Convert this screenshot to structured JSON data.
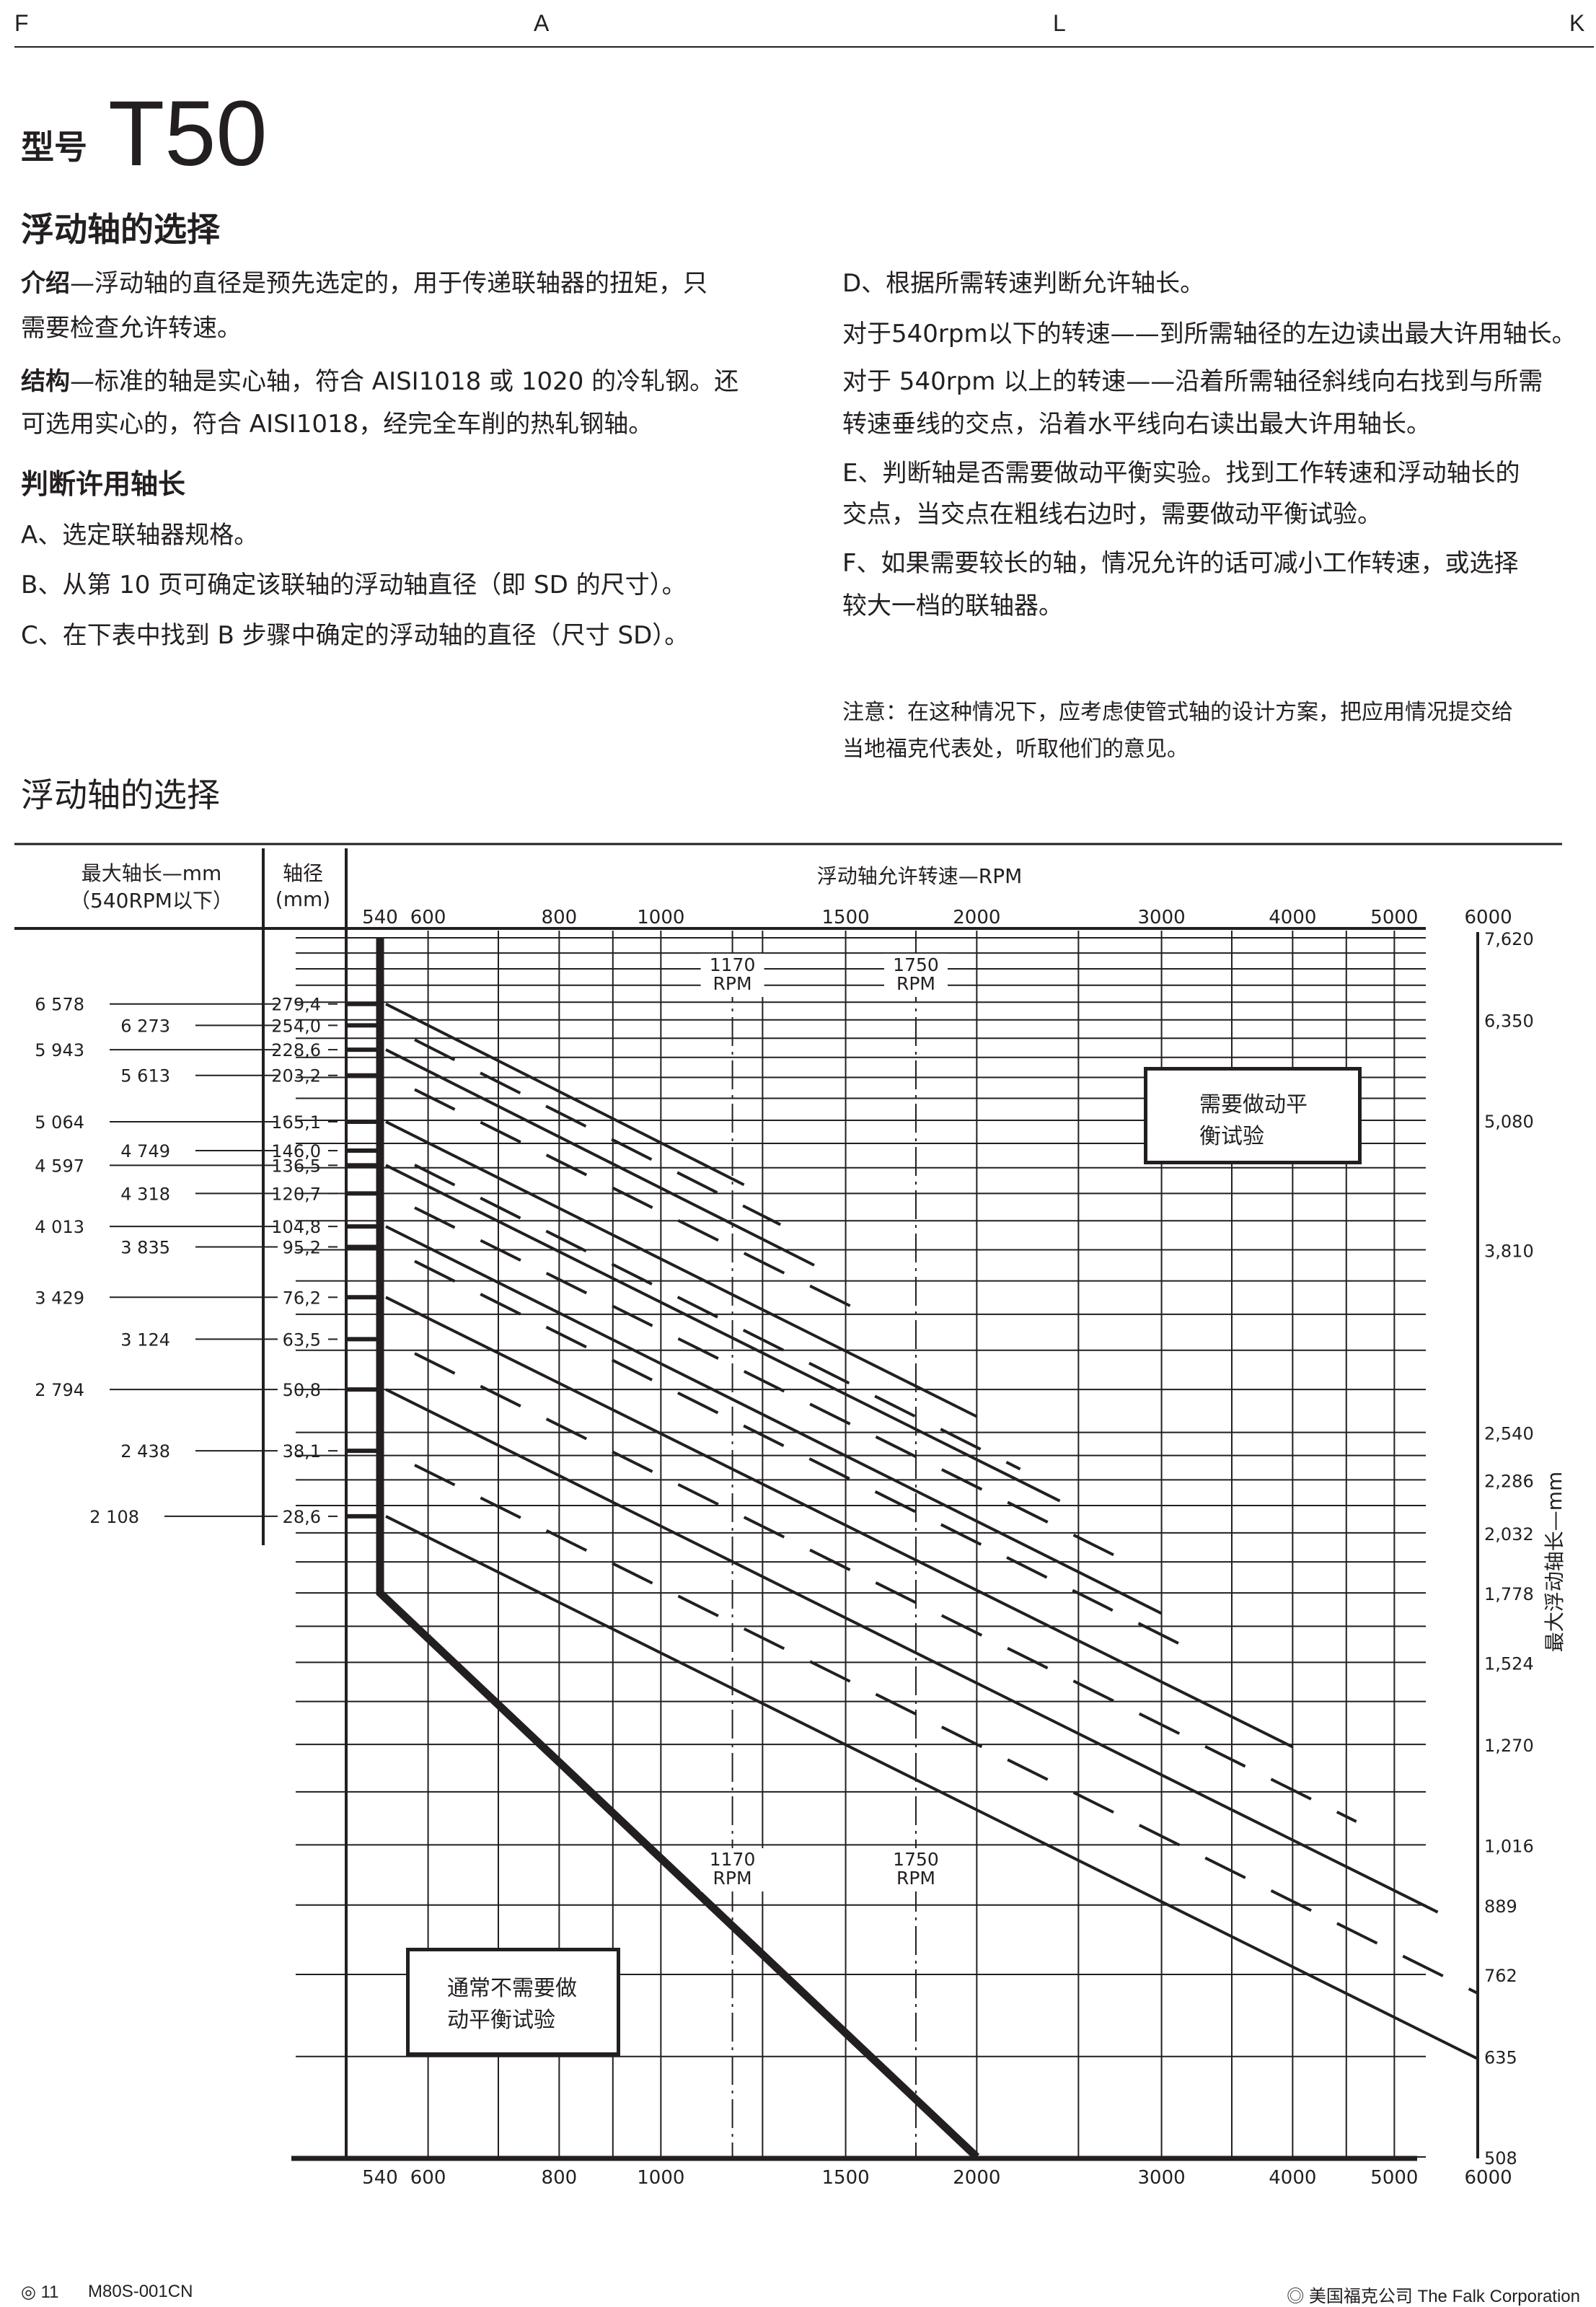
{
  "header": {
    "letters": [
      "F",
      "A",
      "L",
      "K"
    ]
  },
  "title": {
    "prefix": "型号",
    "model": "T50"
  },
  "section_heading": "浮动轴的选择",
  "intro": {
    "label": "介绍",
    "lines": [
      "—浮动轴的直径是预先选定的，用于传递联轴器的扭矩，只",
      "需要检查允许转速。"
    ]
  },
  "structure": {
    "label": "结构",
    "lines": [
      "—标准的轴是实心轴，符合 AISI1018 或 1020 的冷轧钢。还",
      "可选用实心的，符合 AISI1018，经完全车削的热轧钢轴。"
    ]
  },
  "steps_heading": "判断许用轴长",
  "steps_left": [
    "A、选定联轴器规格。",
    "B、从第 10 页可确定该联轴的浮动轴直径（即 SD 的尺寸）。",
    "C、在下表中找到 B 步骤中确定的浮动轴的直径（尺寸 SD）。"
  ],
  "steps_right": [
    "D、根据所需转速判断允许轴长。",
    "对于540rpm以下的转速——到所需轴径的左边读出最大许用轴长。",
    "对于 540rpm 以上的转速——沿着所需轴径斜线向右找到与所需",
    "转速垂线的交点，沿着水平线向右读出最大许用轴长。",
    "E、判断轴是否需要做动平衡实验。找到工作转速和浮动轴长的",
    "交点，当交点在粗线右边时，需要做动平衡试验。",
    "F、如果需要较长的轴，情况允许的话可减小工作转速，或选择",
    "较大一档的联轴器。"
  ],
  "note": [
    "注意：在这种情况下，应考虑使管式轴的设计方案，把应用情况提交给",
    "当地福克代表处，听取他们的意见。"
  ],
  "chart_heading": "浮动轴的选择",
  "chart_data": {
    "type": "line",
    "left_header": {
      "col1_line1": "最大轴长—mm",
      "col1_line2": "（540RPM以下）",
      "col2_line1": "轴径",
      "col2_line2": "(mm)"
    },
    "x_axis": {
      "label": "浮动轴允许转速—RPM",
      "scale": "log",
      "range": [
        540,
        6000
      ],
      "ticks": [
        "540",
        "600",
        "800",
        "1000",
        "1500",
        "2000",
        "3000",
        "4000",
        "5000",
        "6000"
      ],
      "tick_values": [
        540,
        600,
        800,
        1000,
        1500,
        2000,
        3000,
        4000,
        5000,
        6000
      ]
    },
    "y_axis": {
      "label": "最大浮动轴长—mm",
      "scale": "log",
      "range": [
        508,
        7620
      ],
      "position": "right",
      "ticks": [
        "7,620",
        "6,350",
        "5,080",
        "3,810",
        "2,540",
        "2,286",
        "2,032",
        "1,778",
        "1,524",
        "1,270",
        "1,016",
        "889",
        "762",
        "635",
        "508"
      ],
      "tick_values": [
        7620,
        6350,
        5080,
        3810,
        2540,
        2286,
        2032,
        1778,
        1524,
        1270,
        1016,
        889,
        762,
        635,
        508
      ]
    },
    "grid": true,
    "series": [
      {
        "diameter": "279,4",
        "max_length_540": "6 578",
        "style": "solid",
        "x": [
          540,
          1200
        ],
        "y": [
          6578,
          4402
        ]
      },
      {
        "diameter": "254,0",
        "max_length_540": "6 273",
        "style": "dashed",
        "x": [
          540,
          1300
        ],
        "y": [
          6273,
          4029
        ]
      },
      {
        "diameter": "228,6",
        "max_length_540": "5 943",
        "style": "solid",
        "x": [
          540,
          1400
        ],
        "y": [
          5943,
          3682
        ]
      },
      {
        "diameter": "203,2",
        "max_length_540": "5 613",
        "style": "dashed",
        "x": [
          540,
          1600
        ],
        "y": [
          5613,
          3273
        ]
      },
      {
        "diameter": "165,1",
        "max_length_540": "5 064",
        "style": "solid",
        "x": [
          540,
          2000
        ],
        "y": [
          5064,
          2631
        ]
      },
      {
        "diameter": "146,0",
        "max_length_540": "4 749",
        "style": "dashed",
        "x": [
          540,
          2200
        ],
        "y": [
          4749,
          2341
        ]
      },
      {
        "diameter": "136,5",
        "max_length_540": "4 597",
        "style": "solid",
        "x": [
          540,
          2400
        ],
        "y": [
          4597,
          2181
        ]
      },
      {
        "diameter": "120,7",
        "max_length_540": "4 318",
        "style": "dashed",
        "x": [
          540,
          2700
        ],
        "y": [
          4318,
          1935
        ]
      },
      {
        "diameter": "104,8",
        "max_length_540": "4 013",
        "style": "solid",
        "x": [
          540,
          3000
        ],
        "y": [
          4013,
          1699
        ]
      },
      {
        "diameter": "95,2",
        "max_length_540": "3 835",
        "style": "dashed",
        "x": [
          540,
          3200
        ],
        "y": [
          3835,
          1568
        ]
      },
      {
        "diameter": "76,2",
        "max_length_540": "3 429",
        "style": "solid",
        "x": [
          540,
          4000
        ],
        "y": [
          3429,
          1263
        ]
      },
      {
        "diameter": "63,5",
        "max_length_540": "3 124",
        "style": "dashed",
        "x": [
          540,
          4600
        ],
        "y": [
          3124,
          1070
        ]
      },
      {
        "diameter": "50,8",
        "max_length_540": "2 794",
        "style": "solid",
        "x": [
          540,
          5500
        ],
        "y": [
          2794,
          875
        ]
      },
      {
        "diameter": "38,1",
        "max_length_540": "2 438",
        "style": "dashed",
        "x": [
          540,
          6000
        ],
        "y": [
          2438,
          731
        ]
      },
      {
        "diameter": "28,6",
        "max_length_540": "2 108",
        "style": "solid",
        "x": [
          540,
          6000
        ],
        "y": [
          2108,
          632
        ]
      }
    ],
    "balance_boundary": {
      "style": "thick",
      "x": [
        540,
        540,
        2000
      ],
      "y": [
        7620,
        1778,
        508
      ]
    },
    "reference_speeds": [
      {
        "rpm": 1170,
        "value": "1170",
        "unit": "RPM"
      },
      {
        "rpm": 1750,
        "value": "1750",
        "unit": "RPM"
      }
    ],
    "annotations": {
      "balance_required": [
        "需要做动平",
        "衡试验"
      ],
      "balance_not_required": [
        "通常不需要做",
        "动平衡试验"
      ]
    }
  },
  "footer": {
    "page": "◎ 11",
    "doc_code": "M80S-001CN",
    "copyright": "◎ 美国福克公司 The Falk Corporation"
  }
}
